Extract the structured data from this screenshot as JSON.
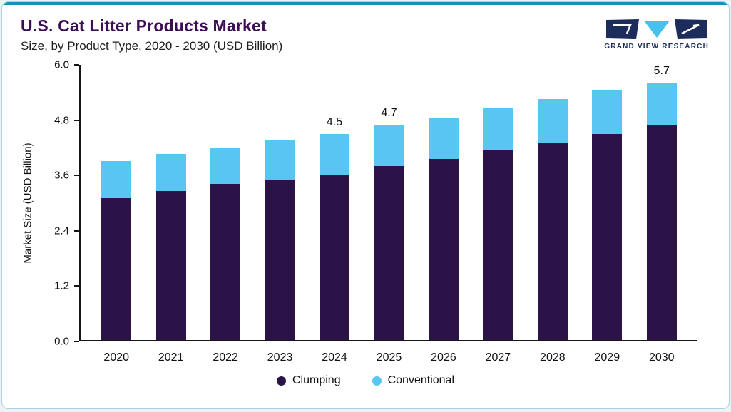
{
  "header": {
    "title": "U.S. Cat Litter Products Market",
    "subtitle": "Size, by Product Type, 2020 - 2030 (USD Billion)"
  },
  "logo": {
    "text": "GRAND VIEW RESEARCH",
    "navy": "#1c2c5b",
    "light_blue": "#45c1ee"
  },
  "colors": {
    "accent_line": "#1295b2",
    "title": "#3d0e56",
    "clumping": "#2b1348",
    "conventional": "#57c7f2"
  },
  "chart_data": {
    "type": "bar",
    "stacked": true,
    "title": "U.S. Cat Litter Products Market Size, by Product Type, 2020 - 2030 (USD Billion)",
    "categories": [
      "2020",
      "2021",
      "2022",
      "2023",
      "2024",
      "2025",
      "2026",
      "2027",
      "2028",
      "2029",
      "2030"
    ],
    "series": [
      {
        "name": "Clumping",
        "color": "#2b1348",
        "values": [
          3.1,
          3.25,
          3.4,
          3.5,
          3.6,
          3.8,
          3.95,
          4.15,
          4.3,
          4.5,
          4.75
        ]
      },
      {
        "name": "Conventional",
        "color": "#57c7f2",
        "values": [
          0.8,
          0.8,
          0.8,
          0.85,
          0.9,
          0.9,
          0.9,
          0.9,
          0.95,
          0.95,
          0.95
        ]
      }
    ],
    "totals": [
      3.9,
      4.05,
      4.2,
      4.35,
      4.5,
      4.7,
      4.85,
      5.05,
      5.25,
      5.45,
      5.7
    ],
    "bar_labels": [
      "",
      "",
      "",
      "",
      "4.5",
      "4.7",
      "",
      "",
      "",
      "",
      "5.7"
    ],
    "ylabel": "Market Size (USD Billion)",
    "yticks": [
      "0.0",
      "1.2",
      "2.4",
      "3.6",
      "4.8",
      "6.0"
    ],
    "ylim": [
      0,
      6.0
    ],
    "grid": false,
    "legend_position": "bottom"
  },
  "legend": {
    "items": [
      {
        "label": "Clumping",
        "color": "#2b1348"
      },
      {
        "label": "Conventional",
        "color": "#57c7f2"
      }
    ]
  }
}
